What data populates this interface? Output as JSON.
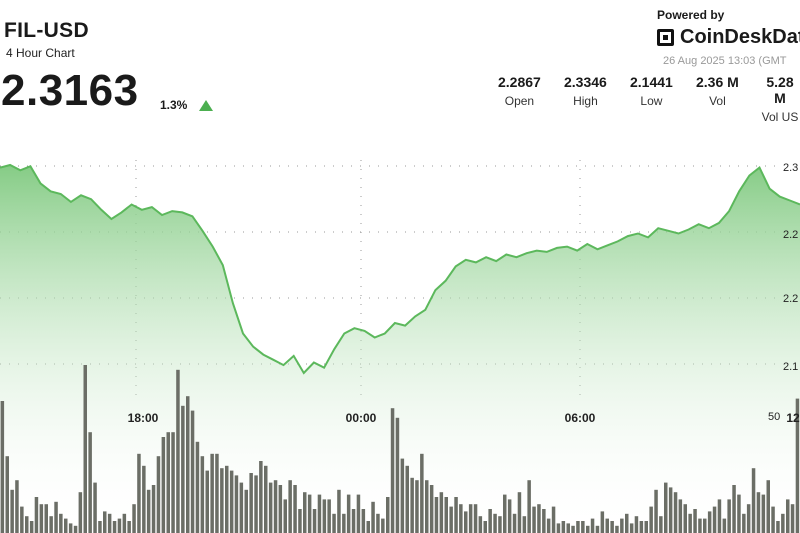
{
  "header": {
    "pair": "FIL-USD",
    "subtitle": "4 Hour Chart",
    "price": "2.3163",
    "change": "1.3%"
  },
  "branding": {
    "powered_by": "Powered by",
    "name": "CoinDeskDat",
    "datetime": "26 Aug 2025 13:03 (GMT"
  },
  "stats": [
    {
      "value": "2.2867",
      "label": "Open"
    },
    {
      "value": "2.3346",
      "label": "High"
    },
    {
      "value": "2.1441",
      "label": "Low"
    },
    {
      "value": "2.36 M",
      "label": "Vol"
    },
    {
      "value": "5.28 M",
      "label": "Vol US"
    }
  ],
  "colors": {
    "line": "#5cb85c",
    "area_top": "#7fc97f",
    "area_bottom": "#ffffff",
    "volume": "#6b6e66",
    "up": "#4caf50"
  },
  "chart_data": {
    "type": "area",
    "x_ticks": [
      "18:00",
      "00:00",
      "06:00",
      "12:"
    ],
    "y_ticks": [
      "2.3",
      "2.2",
      "2.2",
      "2.1"
    ],
    "volume_tick": "50",
    "grid": true,
    "price_series": [
      2.318,
      2.32,
      2.316,
      2.319,
      2.306,
      2.3,
      2.298,
      2.292,
      2.297,
      2.294,
      2.286,
      2.279,
      2.284,
      2.29,
      2.286,
      2.288,
      2.282,
      2.285,
      2.284,
      2.281,
      2.27,
      2.258,
      2.244,
      2.215,
      2.192,
      2.182,
      2.176,
      2.172,
      2.168,
      2.175,
      2.162,
      2.17,
      2.166,
      2.18,
      2.192,
      2.196,
      2.194,
      2.189,
      2.192,
      2.2,
      2.198,
      2.205,
      2.21,
      2.225,
      2.232,
      2.243,
      2.248,
      2.246,
      2.25,
      2.247,
      2.252,
      2.25,
      2.253,
      2.255,
      2.254,
      2.257,
      2.258,
      2.255,
      2.26,
      2.256,
      2.259,
      2.262,
      2.266,
      2.268,
      2.265,
      2.272,
      2.27,
      2.268,
      2.271,
      2.275,
      2.272,
      2.276,
      2.285,
      2.3,
      2.312,
      2.318,
      2.302,
      2.296,
      2.293,
      2.29
    ],
    "volume_bars": [
      0.55,
      0.32,
      0.18,
      0.22,
      0.11,
      0.07,
      0.05,
      0.15,
      0.12,
      0.12,
      0.07,
      0.13,
      0.08,
      0.06,
      0.04,
      0.03,
      0.17,
      0.7,
      0.42,
      0.21,
      0.05,
      0.09,
      0.08,
      0.05,
      0.06,
      0.08,
      0.05,
      0.12,
      0.33,
      0.28,
      0.18,
      0.2,
      0.32,
      0.4,
      0.42,
      0.42,
      0.68,
      0.53,
      0.57,
      0.51,
      0.38,
      0.32,
      0.26,
      0.33,
      0.33,
      0.27,
      0.28,
      0.26,
      0.24,
      0.21,
      0.18,
      0.25,
      0.24,
      0.3,
      0.28,
      0.21,
      0.22,
      0.2,
      0.14,
      0.22,
      0.2,
      0.1,
      0.17,
      0.16,
      0.1,
      0.16,
      0.14,
      0.14,
      0.08,
      0.18,
      0.08,
      0.16,
      0.1,
      0.16,
      0.1,
      0.05,
      0.13,
      0.08,
      0.06,
      0.15
    ],
    "volume_bars_right": [
      0.52,
      0.48,
      0.31,
      0.28,
      0.23,
      0.22,
      0.33,
      0.22,
      0.2,
      0.15,
      0.17,
      0.15,
      0.11,
      0.15,
      0.12,
      0.09,
      0.12,
      0.12,
      0.07,
      0.05,
      0.1,
      0.08,
      0.07,
      0.16,
      0.14,
      0.08,
      0.17,
      0.07,
      0.22,
      0.11,
      0.12,
      0.1,
      0.06,
      0.11,
      0.04,
      0.05,
      0.04,
      0.03,
      0.05,
      0.05,
      0.03,
      0.06,
      0.03,
      0.09,
      0.06,
      0.05,
      0.03,
      0.06,
      0.08,
      0.04,
      0.07,
      0.05,
      0.05,
      0.11,
      0.18,
      0.07,
      0.21,
      0.19,
      0.17,
      0.14,
      0.12,
      0.08,
      0.1,
      0.06,
      0.06,
      0.09,
      0.11,
      0.14,
      0.06,
      0.14,
      0.2,
      0.16,
      0.08,
      0.12,
      0.27,
      0.17,
      0.16,
      0.22,
      0.11,
      0.05,
      0.08,
      0.14,
      0.12,
      0.56
    ]
  }
}
